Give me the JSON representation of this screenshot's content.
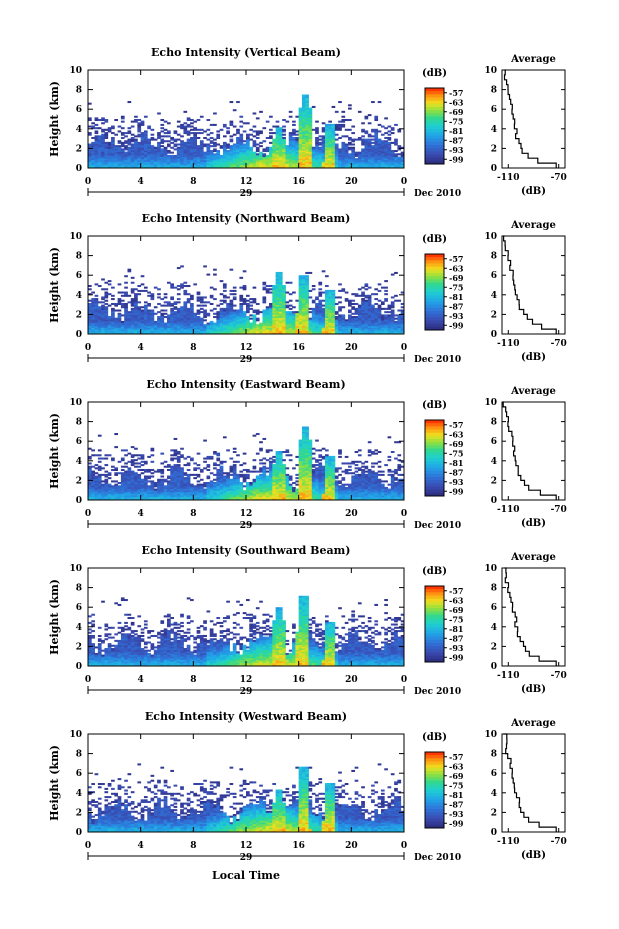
{
  "chart_data": {
    "type": "heatmap",
    "common": {
      "ylabel": "Height (km)",
      "x_ticks": [
        "0",
        "4",
        "8",
        "12",
        "16",
        "20",
        "0"
      ],
      "y_ticks": [
        "0",
        "2",
        "4",
        "6",
        "8",
        "10"
      ],
      "xlim": [
        0,
        24
      ],
      "ylim": [
        0,
        10
      ],
      "date_day": "29",
      "date_month": "Dec 2010",
      "xlabel": "Local Time",
      "colorbar_unit": "(dB)",
      "colorbar_ticks": [
        "-57",
        "-63",
        "-69",
        "-75",
        "-81",
        "-87",
        "-93",
        "-99"
      ],
      "colorbar_range": [
        -102,
        -54
      ],
      "profile_title": "Average",
      "profile_xlabel": "(dB)",
      "profile_x_ticks": [
        "-110",
        "-70"
      ],
      "profile_xlim": [
        -115,
        -65
      ]
    },
    "panels": [
      {
        "title": "Echo Intensity (Vertical Beam)",
        "convective_cells": [
          {
            "time": 14.5,
            "top": 4.2
          },
          {
            "time": 16.5,
            "top": 7.5
          },
          {
            "time": 18.3,
            "top": 4.5
          }
        ],
        "profile": {
          "height": [
            0,
            0.5,
            1,
            1.5,
            2,
            2.5,
            3,
            3.5,
            4,
            4.5,
            5,
            5.5,
            6,
            6.5,
            7,
            7.5,
            8,
            8.5,
            9,
            9.5,
            10
          ],
          "db": [
            -72,
            -86,
            -95,
            -98,
            -100,
            -102,
            -103,
            -104,
            -105,
            -106,
            -106,
            -107,
            -108,
            -108,
            -109,
            -110,
            -111,
            -111,
            -112,
            -112,
            -113
          ]
        }
      },
      {
        "title": "Echo Intensity (Northward Beam)",
        "convective_cells": [
          {
            "time": 14.5,
            "top": 6.3
          },
          {
            "time": 16.3,
            "top": 6.0
          },
          {
            "time": 18.3,
            "top": 4.5
          }
        ],
        "profile": {
          "height": [
            0,
            0.5,
            1,
            1.5,
            2,
            2.5,
            3,
            3.5,
            4,
            4.5,
            5,
            5.5,
            6,
            6.5,
            7,
            7.5,
            8,
            8.5,
            9,
            9.5,
            10
          ],
          "db": [
            -72,
            -83,
            -92,
            -96,
            -99,
            -101,
            -102,
            -103,
            -104,
            -105,
            -105,
            -106,
            -107,
            -108,
            -109,
            -110,
            -111,
            -112,
            -112,
            -113,
            -113
          ]
        }
      },
      {
        "title": "Echo Intensity (Eastward Beam)",
        "convective_cells": [
          {
            "time": 14.5,
            "top": 5.0
          },
          {
            "time": 16.5,
            "top": 7.5
          },
          {
            "time": 18.3,
            "top": 4.5
          }
        ],
        "profile": {
          "height": [
            0,
            0.5,
            1,
            1.5,
            2,
            2.5,
            3,
            3.5,
            4,
            4.5,
            5,
            5.5,
            6,
            6.5,
            7,
            7.5,
            8,
            8.5,
            9,
            9.5,
            10
          ],
          "db": [
            -72,
            -84,
            -93,
            -98,
            -100,
            -101,
            -102,
            -103,
            -104,
            -105,
            -106,
            -106,
            -107,
            -108,
            -109,
            -110,
            -111,
            -111,
            -112,
            -113,
            -113
          ]
        }
      },
      {
        "title": "Echo Intensity (Southward Beam)",
        "convective_cells": [
          {
            "time": 14.5,
            "top": 6.0
          },
          {
            "time": 16.3,
            "top": 7.2
          },
          {
            "time": 18.3,
            "top": 4.5
          }
        ],
        "profile": {
          "height": [
            0,
            0.5,
            1,
            1.5,
            2,
            2.5,
            3,
            3.5,
            4,
            4.5,
            5,
            5.5,
            6,
            6.5,
            7,
            7.5,
            8,
            8.5,
            9,
            9.5,
            10
          ],
          "db": [
            -72,
            -85,
            -93,
            -97,
            -99,
            -101,
            -102,
            -103,
            -104,
            -104,
            -105,
            -106,
            -107,
            -108,
            -109,
            -110,
            -111,
            -112,
            -112,
            -113,
            -113
          ]
        }
      },
      {
        "title": "Echo Intensity (Westward Beam)",
        "convective_cells": [
          {
            "time": 14.5,
            "top": 4.3
          },
          {
            "time": 16.4,
            "top": 6.6
          },
          {
            "time": 18.3,
            "top": 5.0
          }
        ],
        "profile": {
          "height": [
            0,
            0.5,
            1,
            1.5,
            2,
            2.5,
            3,
            3.5,
            4,
            4.5,
            5,
            5.5,
            6,
            6.5,
            7,
            7.5,
            8,
            8.5,
            9,
            9.5,
            10
          ],
          "db": [
            -72,
            -85,
            -94,
            -98,
            -100,
            -101,
            -102,
            -103,
            -104,
            -105,
            -106,
            -106,
            -107,
            -108,
            -109,
            -110,
            -111,
            -111,
            -112,
            -112,
            -113
          ]
        }
      }
    ]
  }
}
